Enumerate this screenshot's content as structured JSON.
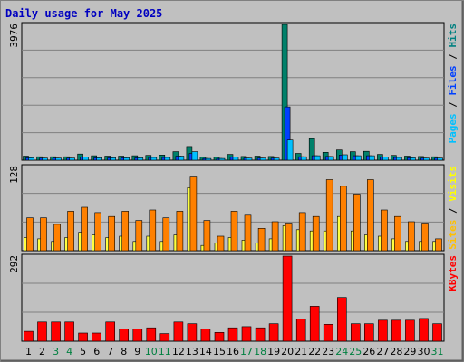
{
  "chart_data": {
    "type": "bar",
    "title": "Daily usage for May 2025",
    "x_tick_labels": [
      "1",
      "2",
      "3",
      "4",
      "5",
      "6",
      "7",
      "8",
      "9",
      "10",
      "11",
      "12",
      "13",
      "14",
      "15",
      "16",
      "17",
      "18",
      "19",
      "20",
      "21",
      "22",
      "23",
      "24",
      "25",
      "26",
      "27",
      "28",
      "29",
      "30",
      "31"
    ],
    "weekend_days": [
      3,
      4,
      10,
      11,
      17,
      18,
      24,
      25,
      31
    ],
    "panels": [
      {
        "name": "hits-files-pages",
        "ymax": 3976,
        "ymax_label": "3976",
        "side_label": [
          {
            "text": "Pages",
            "color": "#00C0FF"
          },
          {
            "text": " / ",
            "color": "#000000"
          },
          {
            "text": "Files",
            "color": "#0040FF"
          },
          {
            "text": " / ",
            "color": "#000000"
          },
          {
            "text": "Hits",
            "color": "#008080"
          }
        ],
        "series": [
          {
            "name": "Hits",
            "color": "#00806A",
            "values": [
              120,
              100,
              100,
              100,
              180,
              130,
              120,
              120,
              130,
              140,
              150,
              250,
              400,
              90,
              90,
              170,
              110,
              120,
              110,
              3976,
              200,
              630,
              230,
              300,
              250,
              260,
              170,
              140,
              120,
              110,
              100
            ]
          },
          {
            "name": "Files",
            "color": "#0040FF",
            "values": [
              70,
              60,
              60,
              60,
              90,
              70,
              70,
              70,
              70,
              80,
              80,
              120,
              200,
              50,
              50,
              90,
              60,
              60,
              60,
              1560,
              100,
              130,
              110,
              150,
              130,
              130,
              90,
              80,
              70,
              60,
              60
            ]
          },
          {
            "name": "Pages",
            "color": "#00C0FF",
            "values": [
              70,
              60,
              60,
              60,
              90,
              70,
              70,
              70,
              70,
              80,
              80,
              120,
              250,
              50,
              50,
              90,
              60,
              60,
              60,
              590,
              100,
              130,
              110,
              160,
              130,
              130,
              90,
              80,
              70,
              60,
              60
            ]
          }
        ]
      },
      {
        "name": "visits-sites",
        "ymax": 128,
        "ymax_label": "128",
        "side_label": [
          {
            "text": "Sites",
            "color": "#FFC000"
          },
          {
            "text": " / ",
            "color": "#000000"
          },
          {
            "text": "Visits",
            "color": "#FFFF00"
          }
        ],
        "series": [
          {
            "name": "Visits",
            "color": "#FFFF40",
            "values": [
              20,
              18,
              14,
              20,
              28,
              24,
              20,
              22,
              14,
              22,
              14,
              24,
              96,
              8,
              12,
              20,
              16,
              12,
              18,
              38,
              32,
              30,
              30,
              52,
              30,
              24,
              22,
              18,
              14,
              14,
              14
            ]
          },
          {
            "name": "Sites",
            "color": "#FF8000",
            "values": [
              50,
              50,
              40,
              60,
              66,
              58,
              52,
              60,
              46,
              62,
              50,
              60,
              112,
              46,
              22,
              60,
              54,
              34,
              44,
              42,
              58,
              52,
              108,
              98,
              86,
              108,
              62,
              52,
              44,
              42,
              18
            ]
          }
        ]
      },
      {
        "name": "kbytes",
        "ymax": 292,
        "ymax_label": "292",
        "side_label": [
          {
            "text": "KBytes",
            "color": "#FF0000"
          }
        ],
        "series": [
          {
            "name": "KBytes",
            "color": "#FF0000",
            "values": [
              34,
              66,
              66,
              66,
              28,
              28,
              66,
              42,
              42,
              46,
              26,
              66,
              60,
              42,
              30,
              46,
              50,
              46,
              60,
              292,
              76,
              120,
              58,
              150,
              60,
              60,
              72,
              72,
              72,
              78,
              60
            ]
          }
        ]
      }
    ]
  }
}
